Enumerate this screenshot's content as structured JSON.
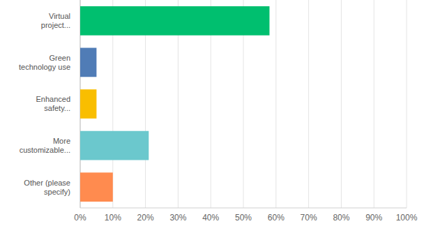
{
  "chart_data": {
    "type": "bar",
    "orientation": "horizontal",
    "categories": [
      "Virtual project...",
      "Green technology use",
      "Enhanced safety...",
      "More customizable...",
      "Other (please specify)"
    ],
    "values": [
      58,
      5,
      5,
      21,
      10
    ],
    "colors": [
      "#00bf6f",
      "#507cb6",
      "#f9be00",
      "#6bc8cd",
      "#ff8b4f"
    ],
    "xlim": [
      0,
      100
    ],
    "xticks": [
      {
        "value": 0,
        "label": "0%"
      },
      {
        "value": 10,
        "label": "10%"
      },
      {
        "value": 20,
        "label": "20%"
      },
      {
        "value": 30,
        "label": "30%"
      },
      {
        "value": 40,
        "label": "40%"
      },
      {
        "value": 50,
        "label": "50%"
      },
      {
        "value": 60,
        "label": "60%"
      },
      {
        "value": 70,
        "label": "70%"
      },
      {
        "value": 80,
        "label": "80%"
      },
      {
        "value": 90,
        "label": "90%"
      },
      {
        "value": 100,
        "label": "100%"
      }
    ],
    "grid": true
  }
}
